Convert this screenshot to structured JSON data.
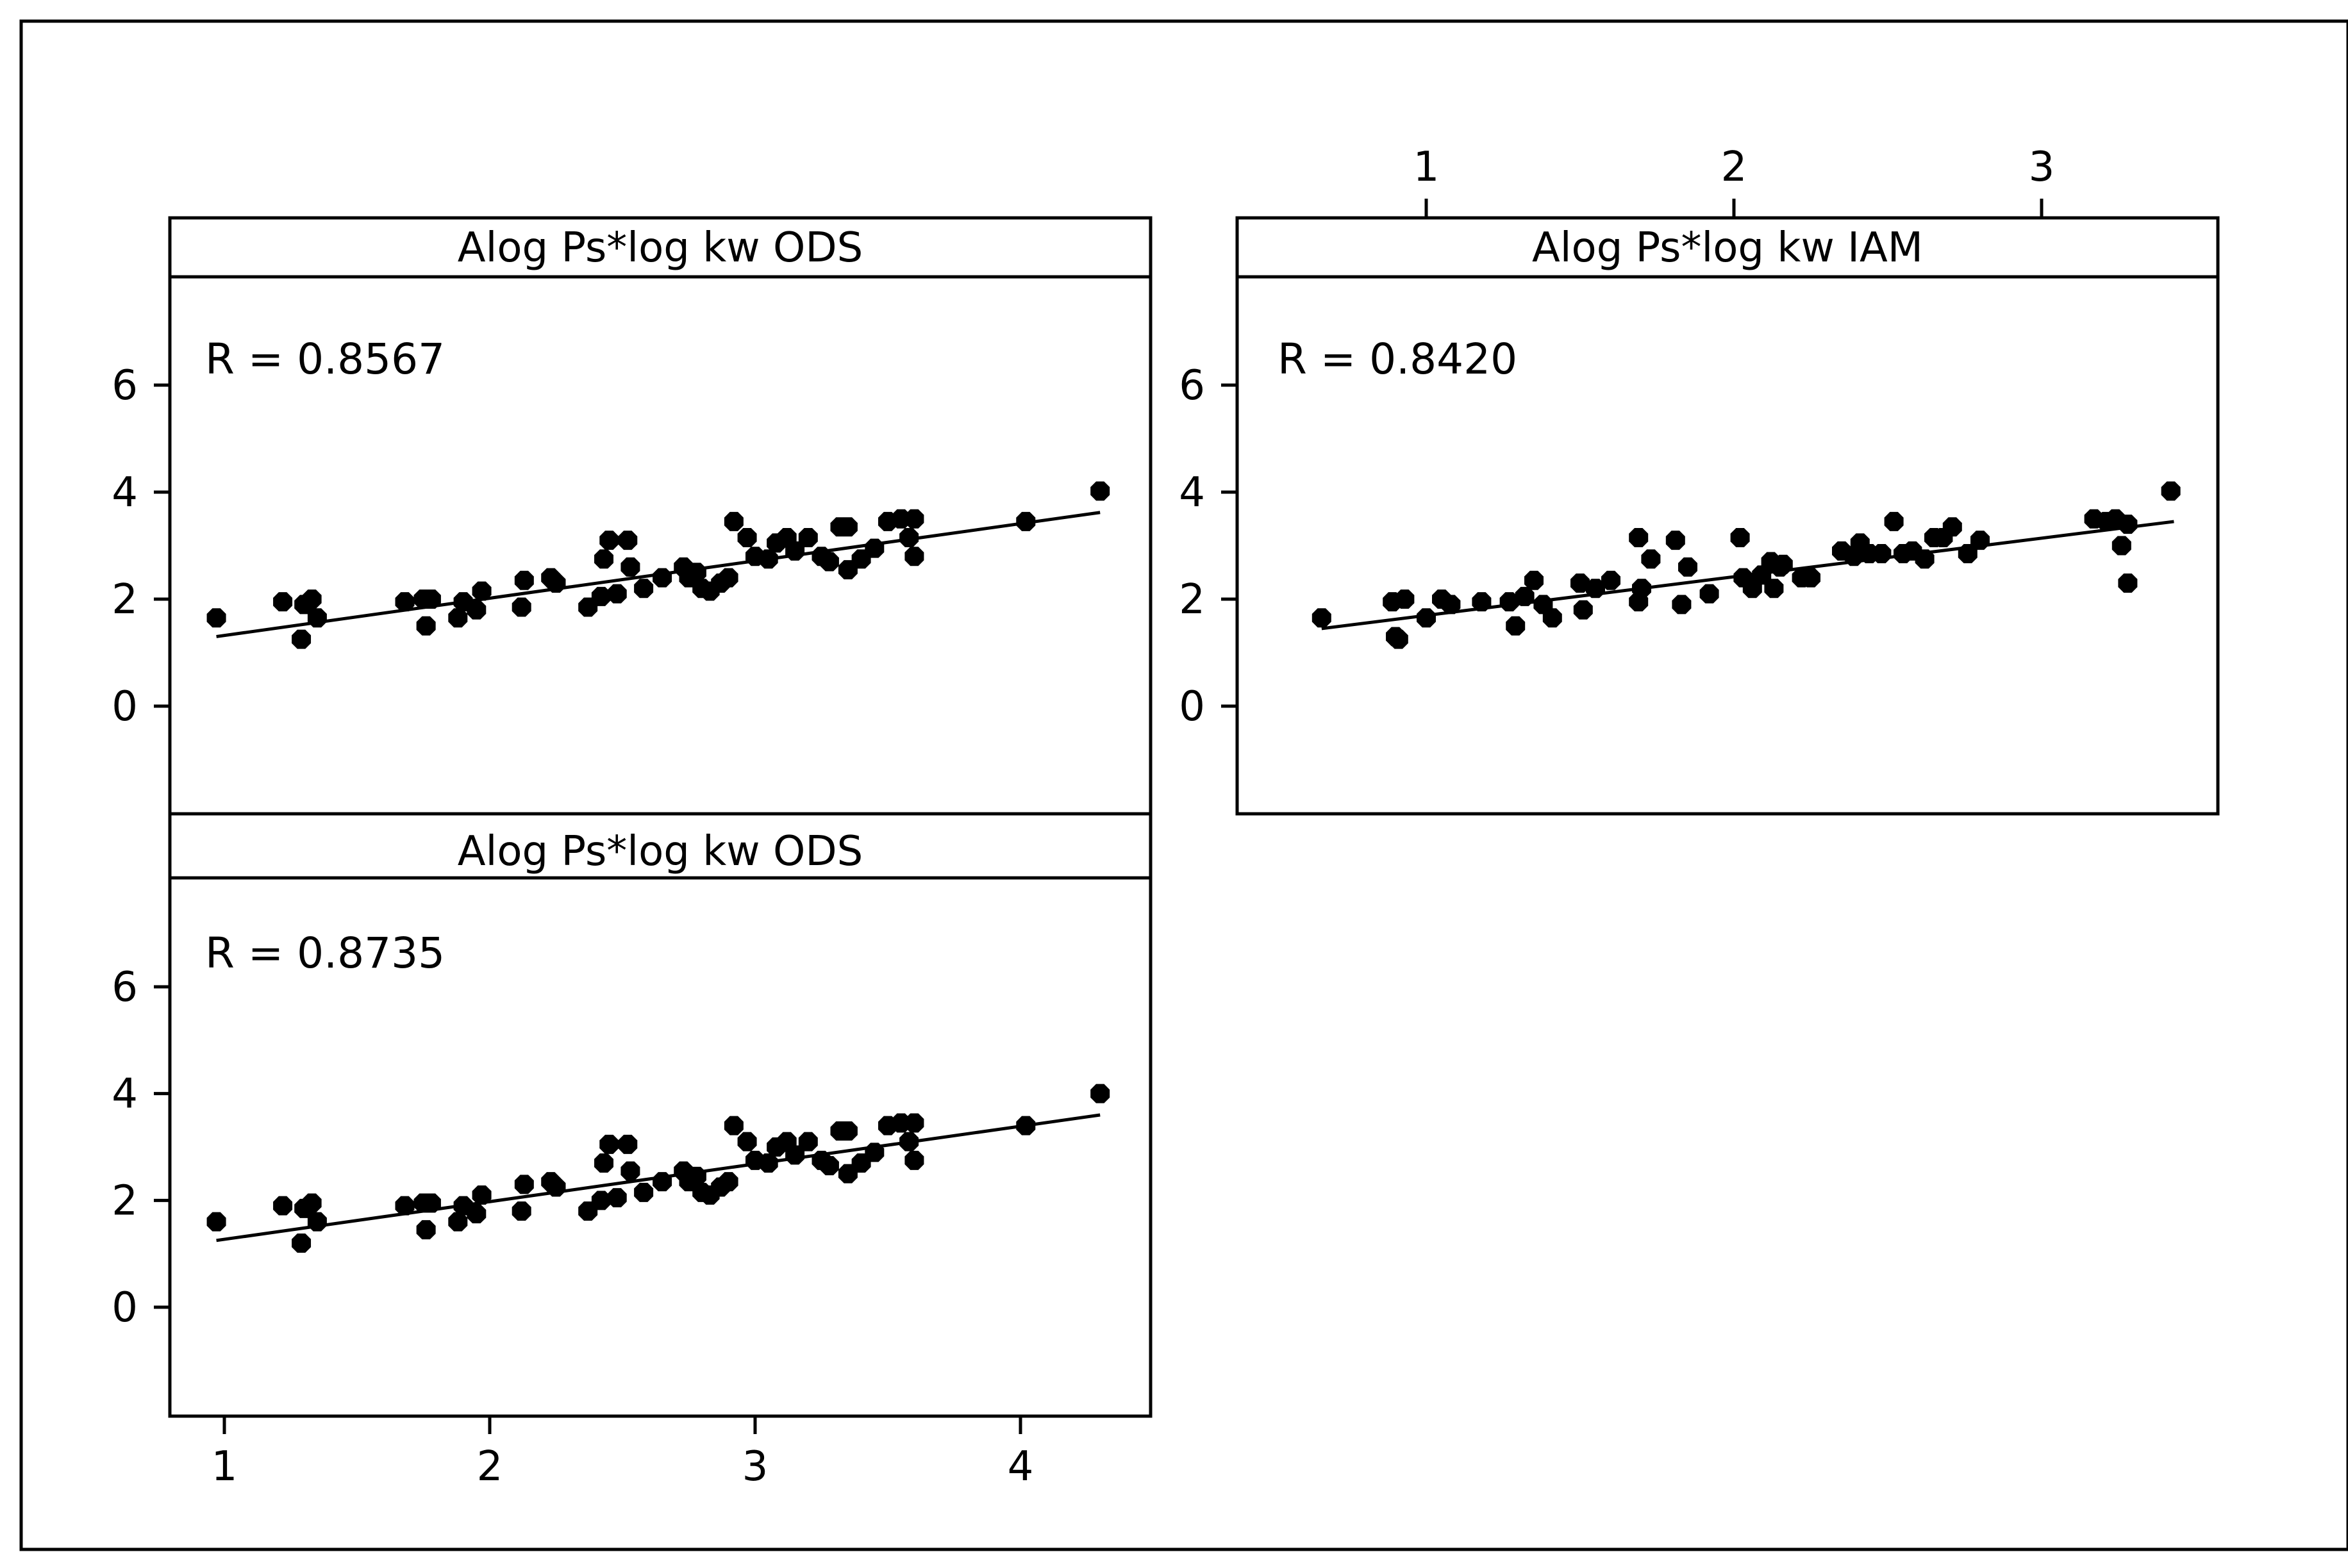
{
  "chart_data": [
    {
      "type": "scatter",
      "title": "Alog Ps*log kw ODS",
      "annotation": "R = 0.8567",
      "xlim": [
        0.85,
        4.55
      ],
      "ylim": [
        -2.0,
        8.0
      ],
      "yticks": [
        "0",
        "2",
        "4",
        "6"
      ],
      "grid": false,
      "fit_line": {
        "x": [
          0.97,
          4.3
        ],
        "y": [
          1.3,
          3.62
        ]
      },
      "points": [
        [
          0.97,
          1.65
        ],
        [
          1.22,
          1.95
        ],
        [
          1.29,
          1.25
        ],
        [
          1.3,
          1.9
        ],
        [
          1.33,
          2.0
        ],
        [
          1.35,
          1.65
        ],
        [
          1.68,
          1.95
        ],
        [
          1.75,
          2.0
        ],
        [
          1.76,
          1.5
        ],
        [
          1.78,
          2.0
        ],
        [
          1.88,
          1.65
        ],
        [
          1.9,
          1.95
        ],
        [
          1.95,
          1.8
        ],
        [
          1.97,
          2.15
        ],
        [
          2.12,
          1.85
        ],
        [
          2.13,
          2.35
        ],
        [
          2.23,
          2.4
        ],
        [
          2.25,
          2.3
        ],
        [
          2.37,
          1.85
        ],
        [
          2.42,
          2.05
        ],
        [
          2.43,
          2.75
        ],
        [
          2.45,
          3.1
        ],
        [
          2.48,
          2.1
        ],
        [
          2.52,
          3.1
        ],
        [
          2.53,
          2.6
        ],
        [
          2.58,
          2.2
        ],
        [
          2.65,
          2.4
        ],
        [
          2.73,
          2.6
        ],
        [
          2.75,
          2.4
        ],
        [
          2.78,
          2.5
        ],
        [
          2.8,
          2.2
        ],
        [
          2.83,
          2.15
        ],
        [
          2.87,
          2.3
        ],
        [
          2.9,
          2.4
        ],
        [
          2.92,
          3.45
        ],
        [
          2.97,
          3.15
        ],
        [
          3.0,
          2.8
        ],
        [
          3.05,
          2.75
        ],
        [
          3.08,
          3.05
        ],
        [
          3.12,
          3.15
        ],
        [
          3.15,
          2.9
        ],
        [
          3.2,
          3.15
        ],
        [
          3.25,
          2.8
        ],
        [
          3.28,
          2.7
        ],
        [
          3.32,
          3.35
        ],
        [
          3.35,
          3.35
        ],
        [
          3.35,
          2.55
        ],
        [
          3.4,
          2.75
        ],
        [
          3.45,
          2.95
        ],
        [
          3.5,
          3.45
        ],
        [
          3.55,
          3.5
        ],
        [
          3.58,
          3.15
        ],
        [
          3.6,
          3.5
        ],
        [
          3.6,
          2.8
        ],
        [
          4.02,
          3.45
        ],
        [
          4.3,
          4.02
        ]
      ]
    },
    {
      "type": "scatter",
      "title": "Alog Ps*log kw IAM",
      "annotation": "R = 0.8420",
      "xticks_top": [
        "1",
        "2",
        "3"
      ],
      "xlim": [
        0.6,
        3.6
      ],
      "ylim": [
        -2.0,
        8.0
      ],
      "yticks": [
        "0",
        "2",
        "4",
        "6"
      ],
      "grid": false,
      "fit_line": {
        "x": [
          0.66,
          3.43
        ],
        "y": [
          1.45,
          3.45
        ]
      },
      "points": [
        [
          0.66,
          1.65
        ],
        [
          0.89,
          1.95
        ],
        [
          0.9,
          1.3
        ],
        [
          0.91,
          1.25
        ],
        [
          0.93,
          2.0
        ],
        [
          1.0,
          1.65
        ],
        [
          1.05,
          2.0
        ],
        [
          1.08,
          1.9
        ],
        [
          1.18,
          1.95
        ],
        [
          1.27,
          1.95
        ],
        [
          1.29,
          1.5
        ],
        [
          1.32,
          2.05
        ],
        [
          1.35,
          2.35
        ],
        [
          1.38,
          1.9
        ],
        [
          1.41,
          1.65
        ],
        [
          1.5,
          2.3
        ],
        [
          1.51,
          1.8
        ],
        [
          1.55,
          2.2
        ],
        [
          1.6,
          2.35
        ],
        [
          1.69,
          3.15
        ],
        [
          1.69,
          1.95
        ],
        [
          1.7,
          2.2
        ],
        [
          1.73,
          2.75
        ],
        [
          1.81,
          3.1
        ],
        [
          1.83,
          1.9
        ],
        [
          1.85,
          2.6
        ],
        [
          1.92,
          2.1
        ],
        [
          2.02,
          3.15
        ],
        [
          2.03,
          2.4
        ],
        [
          2.06,
          2.2
        ],
        [
          2.09,
          2.45
        ],
        [
          2.12,
          2.7
        ],
        [
          2.13,
          2.2
        ],
        [
          2.15,
          2.6
        ],
        [
          2.16,
          2.65
        ],
        [
          2.22,
          2.4
        ],
        [
          2.25,
          2.4
        ],
        [
          2.35,
          2.9
        ],
        [
          2.39,
          2.8
        ],
        [
          2.41,
          3.05
        ],
        [
          2.44,
          2.85
        ],
        [
          2.48,
          2.85
        ],
        [
          2.52,
          3.45
        ],
        [
          2.55,
          2.85
        ],
        [
          2.58,
          2.9
        ],
        [
          2.62,
          2.75
        ],
        [
          2.65,
          3.15
        ],
        [
          2.68,
          3.15
        ],
        [
          2.71,
          3.35
        ],
        [
          2.76,
          2.85
        ],
        [
          2.8,
          3.1
        ],
        [
          3.17,
          3.5
        ],
        [
          3.21,
          3.45
        ],
        [
          3.24,
          3.5
        ],
        [
          3.26,
          3.0
        ],
        [
          3.28,
          3.4
        ],
        [
          3.28,
          2.3
        ],
        [
          3.42,
          4.02
        ]
      ]
    },
    {
      "type": "scatter",
      "title": "Alog Ps*log kw ODS",
      "annotation": "R = 0.8735",
      "xticks_bottom": [
        "1",
        "2",
        "3",
        "4"
      ],
      "xlim": [
        0.85,
        4.55
      ],
      "ylim": [
        -2.0,
        8.0
      ],
      "yticks": [
        "0",
        "2",
        "4",
        "6"
      ],
      "grid": false,
      "fit_line": {
        "x": [
          0.97,
          4.3
        ],
        "y": [
          1.25,
          3.6
        ]
      },
      "points": [
        [
          0.97,
          1.6
        ],
        [
          1.22,
          1.9
        ],
        [
          1.29,
          1.2
        ],
        [
          1.3,
          1.85
        ],
        [
          1.33,
          1.95
        ],
        [
          1.35,
          1.6
        ],
        [
          1.68,
          1.9
        ],
        [
          1.75,
          1.95
        ],
        [
          1.76,
          1.45
        ],
        [
          1.78,
          1.95
        ],
        [
          1.88,
          1.6
        ],
        [
          1.9,
          1.9
        ],
        [
          1.95,
          1.75
        ],
        [
          1.97,
          2.1
        ],
        [
          2.12,
          1.8
        ],
        [
          2.13,
          2.3
        ],
        [
          2.23,
          2.35
        ],
        [
          2.25,
          2.25
        ],
        [
          2.37,
          1.8
        ],
        [
          2.42,
          2.0
        ],
        [
          2.43,
          2.7
        ],
        [
          2.45,
          3.05
        ],
        [
          2.48,
          2.05
        ],
        [
          2.52,
          3.05
        ],
        [
          2.53,
          2.55
        ],
        [
          2.58,
          2.15
        ],
        [
          2.65,
          2.35
        ],
        [
          2.73,
          2.55
        ],
        [
          2.75,
          2.35
        ],
        [
          2.78,
          2.45
        ],
        [
          2.8,
          2.15
        ],
        [
          2.83,
          2.1
        ],
        [
          2.87,
          2.25
        ],
        [
          2.9,
          2.35
        ],
        [
          2.92,
          3.4
        ],
        [
          2.97,
          3.1
        ],
        [
          3.0,
          2.75
        ],
        [
          3.05,
          2.7
        ],
        [
          3.08,
          3.0
        ],
        [
          3.12,
          3.1
        ],
        [
          3.15,
          2.85
        ],
        [
          3.2,
          3.1
        ],
        [
          3.25,
          2.75
        ],
        [
          3.28,
          2.65
        ],
        [
          3.32,
          3.3
        ],
        [
          3.35,
          3.3
        ],
        [
          3.35,
          2.5
        ],
        [
          3.4,
          2.7
        ],
        [
          3.45,
          2.9
        ],
        [
          3.5,
          3.4
        ],
        [
          3.55,
          3.45
        ],
        [
          3.58,
          3.1
        ],
        [
          3.6,
          3.45
        ],
        [
          3.6,
          2.75
        ],
        [
          4.02,
          3.4
        ],
        [
          4.3,
          4.0
        ]
      ]
    }
  ]
}
